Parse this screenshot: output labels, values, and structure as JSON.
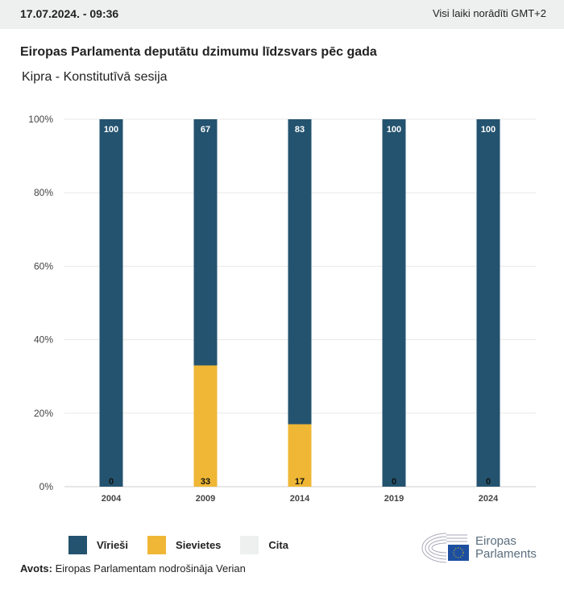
{
  "header": {
    "date": "17.07.2024. - 09:36",
    "timezone": "Visi laiki norādīti GMT+2"
  },
  "title": "Eiropas Parlamenta deputātu dzimumu līdzsvars pēc gada",
  "subtitle": "Kipra - Konstitutīvā sesija",
  "chart_data": {
    "type": "bar",
    "stacked": true,
    "categories": [
      "2004",
      "2009",
      "2014",
      "2019",
      "2024"
    ],
    "series": [
      {
        "name": "Sievietes",
        "color": "#efb735",
        "values": [
          0,
          33,
          17,
          0,
          0
        ]
      },
      {
        "name": "Vīrieši",
        "color": "#24536f",
        "values": [
          100,
          67,
          83,
          100,
          100
        ]
      },
      {
        "name": "Cita",
        "color": "#eef0f0",
        "values": [
          0,
          0,
          0,
          0,
          0
        ]
      }
    ],
    "yticks": [
      "0%",
      "20%",
      "40%",
      "60%",
      "80%",
      "100%"
    ],
    "ylim": [
      0,
      100
    ],
    "grid": true,
    "legend": "bottom-left"
  },
  "legend": [
    {
      "label": "Vīrieši",
      "color": "#24536f"
    },
    {
      "label": "Sievietes",
      "color": "#efb735"
    },
    {
      "label": "Cita",
      "color": "#eef0f0"
    }
  ],
  "source": {
    "label": "Avots:",
    "text": " Eiropas Parlamentam nodrošināja Verian"
  },
  "logo": {
    "line1": "Eiropas",
    "line2": "Parlaments"
  }
}
